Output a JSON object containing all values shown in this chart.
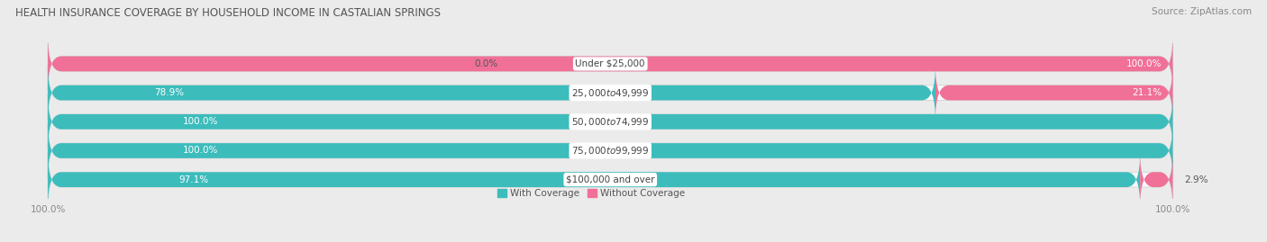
{
  "title": "HEALTH INSURANCE COVERAGE BY HOUSEHOLD INCOME IN CASTALIAN SPRINGS",
  "source": "Source: ZipAtlas.com",
  "categories": [
    "Under $25,000",
    "$25,000 to $49,999",
    "$50,000 to $74,999",
    "$75,000 to $99,999",
    "$100,000 and over"
  ],
  "with_coverage": [
    0.0,
    78.9,
    100.0,
    100.0,
    97.1
  ],
  "without_coverage": [
    100.0,
    21.1,
    0.0,
    0.0,
    2.9
  ],
  "color_with": "#3DBCBC",
  "color_without": "#F07098",
  "color_with_light": "#9DD8D8",
  "bar_height": 0.52,
  "title_fontsize": 8.5,
  "label_fontsize": 7.5,
  "tick_fontsize": 7.5,
  "source_fontsize": 7.5,
  "background_color": "#ebebeb",
  "bar_bg_color": "#ffffff",
  "bar_bg_color2": "#f5f5f5",
  "xlim": [
    0,
    100
  ]
}
